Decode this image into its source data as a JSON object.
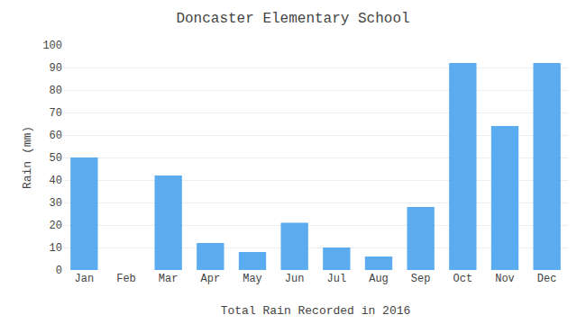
{
  "chart_data": {
    "type": "bar",
    "title": "Doncaster Elementary School",
    "xlabel": "Total Rain Recorded in 2016",
    "ylabel": "Rain (mm)",
    "categories": [
      "Jan",
      "Feb",
      "Mar",
      "Apr",
      "May",
      "Jun",
      "Jul",
      "Aug",
      "Sep",
      "Oct",
      "Nov",
      "Dec"
    ],
    "values": [
      50,
      0,
      42,
      12,
      8,
      21,
      10,
      6,
      28,
      92,
      64,
      92
    ],
    "color": "#5aabf0",
    "ylim": [
      0,
      100
    ],
    "yticks": [
      0,
      10,
      20,
      30,
      40,
      50,
      60,
      70,
      80,
      90,
      100
    ],
    "grid": true
  }
}
